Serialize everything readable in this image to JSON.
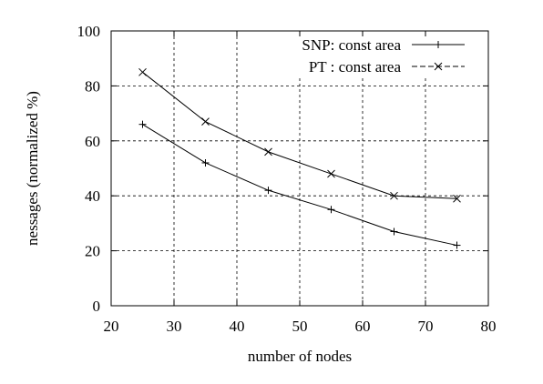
{
  "chart_data": {
    "type": "line",
    "xlabel": "number of nodes",
    "ylabel": "nessages (normalized %)",
    "xlim": [
      20,
      80
    ],
    "ylim": [
      0,
      100
    ],
    "xticks": [
      20,
      30,
      40,
      50,
      60,
      70,
      80
    ],
    "yticks": [
      0,
      20,
      40,
      60,
      80,
      100
    ],
    "grid": true,
    "legend_position": "top-right",
    "x": [
      25,
      35,
      45,
      55,
      65,
      75
    ],
    "series": [
      {
        "name": "SNP: const area",
        "marker": "plus",
        "values": [
          66,
          52,
          42,
          35,
          27,
          22
        ]
      },
      {
        "name": "PT : const area",
        "marker": "cross",
        "values": [
          85,
          67,
          56,
          48,
          40,
          39
        ]
      }
    ]
  }
}
